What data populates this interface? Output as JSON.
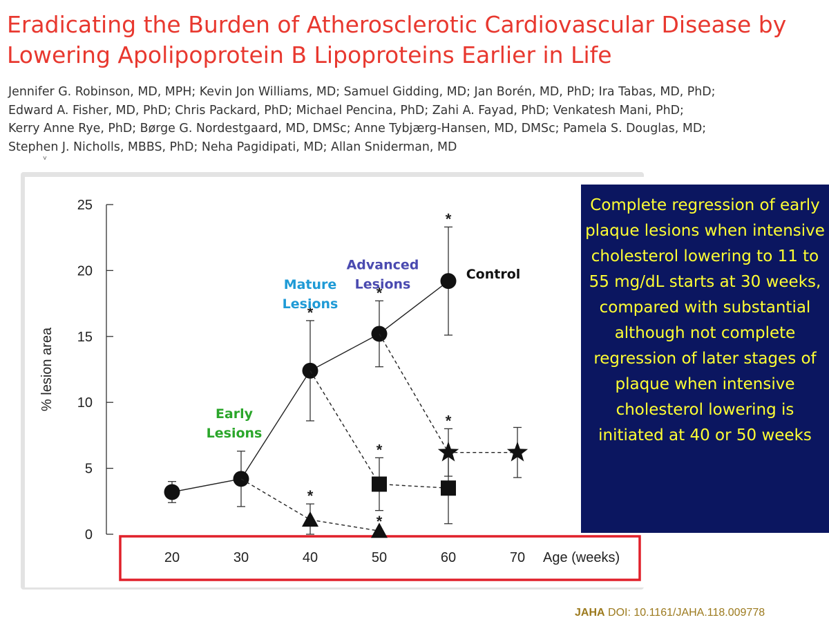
{
  "header": {
    "title_lines": [
      "Eradicating the Burden of Atherosclerotic Cardiovascular Disease by",
      "Lowering Apolipoprotein B Lipoproteins Earlier in Life"
    ],
    "author_lines": [
      "Jennifer G. Robinson, MD, MPH; Kevin Jon Williams, MD; Samuel Gidding, MD; Jan Borén, MD, PhD; Ira Tabas, MD, PhD;",
      "Edward A. Fisher, MD, PhD; Chris Packard, PhD; Michael Pencina, PhD; Zahi A. Fayad, PhD; Venkatesh Mani, PhD;",
      "Kerry Anne Rye, PhD; Børge G. Nordestgaard, MD, DMSc; Anne Tybjærg-Hansen, MD, DMSc; Pamela S. Douglas, MD;",
      "Stephen J. Nicholls, MBBS, PhD; Neha Pagidipati, MD; Allan Sniderman, MD"
    ]
  },
  "chart_data": {
    "type": "line",
    "xlabel": "Age (weeks)",
    "ylabel": "% lesion area",
    "xlim": [
      20,
      70
    ],
    "ylim": [
      0,
      25
    ],
    "x_ticks": [
      20,
      30,
      40,
      50,
      60,
      70
    ],
    "y_ticks": [
      0,
      5,
      10,
      15,
      20,
      25
    ],
    "grid": false,
    "x_axis_highlight_color": "#e0202a",
    "series": [
      {
        "name": "Control",
        "marker": "circle",
        "line": "solid",
        "points": [
          {
            "x": 20,
            "y": 3.2,
            "err": 0.8,
            "star": false
          },
          {
            "x": 30,
            "y": 4.2,
            "err": 2.1,
            "star": false
          },
          {
            "x": 40,
            "y": 12.4,
            "err": 3.8,
            "star": true
          },
          {
            "x": 50,
            "y": 15.2,
            "err": 2.5,
            "star": true
          },
          {
            "x": 60,
            "y": 19.2,
            "err": 4.1,
            "star": true
          }
        ]
      },
      {
        "marker": "triangle",
        "line": "dashed",
        "points": [
          {
            "x": 30,
            "y": 4.2,
            "err": 0,
            "star": false
          },
          {
            "x": 40,
            "y": 1.1,
            "err": 1.2,
            "star": true
          },
          {
            "x": 50,
            "y": 0.25,
            "err": 0,
            "star": true
          }
        ]
      },
      {
        "marker": "square",
        "line": "dashed",
        "points": [
          {
            "x": 40,
            "y": 12.4,
            "err": 0,
            "star": false
          },
          {
            "x": 50,
            "y": 3.8,
            "err": 2.0,
            "star": true
          },
          {
            "x": 60,
            "y": 3.5,
            "err": 2.7,
            "star": false
          }
        ]
      },
      {
        "marker": "star",
        "line": "dashed",
        "points": [
          {
            "x": 50,
            "y": 15.2,
            "err": 0,
            "star": false
          },
          {
            "x": 60,
            "y": 6.2,
            "err": 1.8,
            "star": true
          },
          {
            "x": 70,
            "y": 6.2,
            "err": 1.9,
            "star": false
          }
        ]
      }
    ],
    "annotations": [
      {
        "lines": [
          "Early",
          "Lesions"
        ],
        "color": "#2aa62a",
        "x": 29,
        "y": 8.8
      },
      {
        "lines": [
          "Mature",
          "Lesions"
        ],
        "color": "#1e9ad6",
        "x": 40,
        "y": 18.6
      },
      {
        "lines": [
          "Advanced",
          "Lesions"
        ],
        "color": "#4a4ab0",
        "x": 50.5,
        "y": 20.1
      },
      {
        "lines": [
          "Control"
        ],
        "color": "#111111",
        "x": 66.5,
        "y": 19.4
      }
    ]
  },
  "callout": {
    "text": "Complete regression of early plaque lesions when intensive cholesterol lowering to 11 to 55 mg/dL starts at 30 weeks, compared with substantial although not complete regression of later stages of plaque when intensive cholesterol lowering is initiated at 40 or 50 weeks",
    "background": "#0b1660",
    "text_color": "#ffff33"
  },
  "footer": {
    "journal": "JAHA",
    "doi": " DOI: 10.1161/JAHA.118.009778"
  }
}
